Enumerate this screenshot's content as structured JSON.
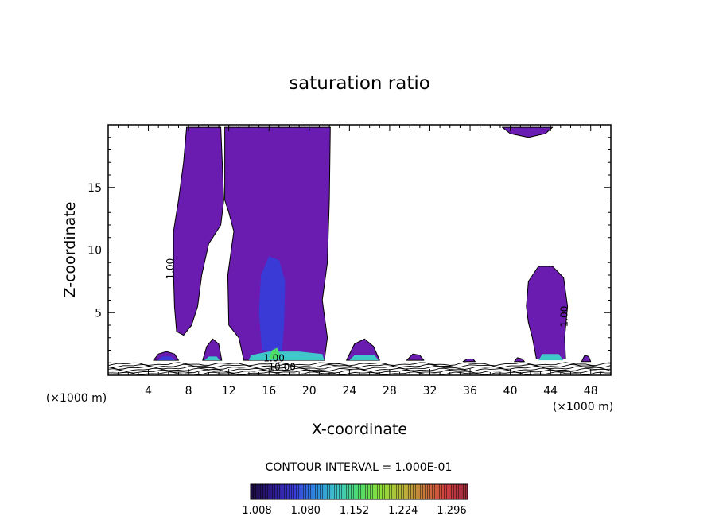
{
  "chart_data": {
    "type": "heatmap",
    "title": "saturation ratio",
    "xlabel": "X-coordinate",
    "ylabel": "Z-coordinate",
    "x_unit_left": "(×1000 m)",
    "x_unit_right": "(×1000 m)",
    "xlim": [
      0,
      50
    ],
    "ylim": [
      0,
      20
    ],
    "x_ticks": [
      4,
      8,
      12,
      16,
      20,
      24,
      28,
      32,
      36,
      40,
      44,
      48
    ],
    "y_ticks": [
      5,
      10,
      15
    ],
    "contour_labels": [
      {
        "text": "1.00",
        "x": 6.5,
        "y": 8.5,
        "rotate": -90
      },
      {
        "text": "1.00",
        "x": 45.7,
        "y": 4.7,
        "rotate": -90
      },
      {
        "text": "1.00",
        "x": 16.5,
        "y": 1.1,
        "rotate": 0
      },
      {
        "text": "10.00",
        "x": 17.3,
        "y": 0.4,
        "rotate": 0
      }
    ],
    "contour_interval_text": "CONTOUR INTERVAL = 1.000E-01",
    "colorbar": {
      "min": 1.0,
      "max": 1.34,
      "tick_labels": [
        "1.008",
        "1.080",
        "1.152",
        "1.224",
        "1.296"
      ],
      "colormap": [
        "#1a0a3a",
        "#2d1a8c",
        "#3a3ad6",
        "#2f8ae0",
        "#3fc7c9",
        "#4fdc6a",
        "#8ee03a",
        "#b9b53a",
        "#c97a3a",
        "#d04040",
        "#9a2a3a"
      ]
    },
    "fill_color": "#6a1bb0",
    "level_colors": {
      "1.08": "#3a3ad6",
      "1.15": "#3fc7c9",
      "1.22": "#4fdc6a"
    },
    "regions": [
      {
        "name": "main-column",
        "level": 1.0,
        "poly": [
          [
            6.5,
            11.5
          ],
          [
            7.0,
            14.0
          ],
          [
            7.5,
            17.0
          ],
          [
            7.8,
            19.8
          ],
          [
            11.2,
            19.8
          ],
          [
            11.5,
            14.0
          ],
          [
            11.2,
            12.0
          ],
          [
            10.0,
            10.5
          ],
          [
            9.3,
            8.0
          ],
          [
            8.9,
            5.5
          ],
          [
            8.3,
            4.0
          ],
          [
            7.5,
            3.2
          ],
          [
            6.8,
            3.5
          ],
          [
            6.6,
            5.5
          ],
          [
            6.5,
            8.0
          ]
        ]
      },
      {
        "name": "right-column",
        "level": 1.0,
        "poly": [
          [
            11.6,
            19.8
          ],
          [
            22.1,
            19.8
          ],
          [
            22.0,
            14.0
          ],
          [
            21.8,
            9.0
          ],
          [
            21.3,
            6.0
          ],
          [
            21.8,
            3.0
          ],
          [
            21.5,
            1.2
          ],
          [
            13.5,
            1.2
          ],
          [
            13.0,
            3.0
          ],
          [
            12.0,
            4.0
          ],
          [
            11.9,
            8.0
          ],
          [
            12.5,
            11.5
          ],
          [
            12.0,
            13.0
          ],
          [
            11.6,
            14.0
          ]
        ]
      },
      {
        "name": "top-right-cap",
        "level": 1.0,
        "poly": [
          [
            39.2,
            19.8
          ],
          [
            44.2,
            19.8
          ],
          [
            43.5,
            19.3
          ],
          [
            41.8,
            19.0
          ],
          [
            40.0,
            19.3
          ]
        ]
      },
      {
        "name": "right-cell",
        "level": 1.0,
        "poly": [
          [
            41.6,
            5.5
          ],
          [
            41.8,
            7.5
          ],
          [
            42.8,
            8.7
          ],
          [
            44.2,
            8.7
          ],
          [
            45.3,
            7.8
          ],
          [
            45.7,
            5.5
          ],
          [
            45.4,
            3.0
          ],
          [
            45.5,
            1.3
          ],
          [
            42.6,
            1.3
          ],
          [
            42.2,
            3.0
          ],
          [
            41.8,
            4.2
          ]
        ]
      },
      {
        "name": "low-cell-5",
        "level": 1.0,
        "poly": [
          [
            4.5,
            1.2
          ],
          [
            5.0,
            1.7
          ],
          [
            5.8,
            1.9
          ],
          [
            6.6,
            1.7
          ],
          [
            7.0,
            1.2
          ]
        ]
      },
      {
        "name": "low-cell-10",
        "level": 1.0,
        "poly": [
          [
            9.4,
            1.2
          ],
          [
            9.8,
            2.3
          ],
          [
            10.4,
            2.9
          ],
          [
            11.0,
            2.5
          ],
          [
            11.3,
            1.2
          ]
        ]
      },
      {
        "name": "low-cell-25",
        "level": 1.0,
        "poly": [
          [
            23.7,
            1.2
          ],
          [
            24.5,
            2.5
          ],
          [
            25.5,
            2.9
          ],
          [
            26.4,
            2.3
          ],
          [
            27.0,
            1.2
          ]
        ]
      },
      {
        "name": "low-cell-30",
        "level": 1.0,
        "poly": [
          [
            29.7,
            1.2
          ],
          [
            30.3,
            1.7
          ],
          [
            31.0,
            1.6
          ],
          [
            31.4,
            1.2
          ]
        ]
      },
      {
        "name": "low-cell-36",
        "level": 1.0,
        "poly": [
          [
            35.3,
            1.1
          ],
          [
            35.7,
            1.3
          ],
          [
            36.3,
            1.3
          ],
          [
            36.5,
            1.1
          ]
        ]
      },
      {
        "name": "low-cell-40",
        "level": 1.0,
        "poly": [
          [
            40.4,
            1.1
          ],
          [
            40.7,
            1.4
          ],
          [
            41.2,
            1.3
          ],
          [
            41.4,
            1.1
          ]
        ]
      },
      {
        "name": "low-cell-48",
        "level": 1.0,
        "poly": [
          [
            47.1,
            1.1
          ],
          [
            47.4,
            1.6
          ],
          [
            47.8,
            1.5
          ],
          [
            48.0,
            1.1
          ]
        ]
      },
      {
        "name": "inner-column-core",
        "level": 1.08,
        "poly": [
          [
            15.0,
            5.0
          ],
          [
            15.2,
            8.0
          ],
          [
            16.0,
            9.5
          ],
          [
            17.0,
            9.2
          ],
          [
            17.6,
            7.5
          ],
          [
            17.5,
            4.0
          ],
          [
            17.3,
            2.0
          ],
          [
            15.3,
            2.0
          ]
        ]
      },
      {
        "name": "base-band-main",
        "level": 1.15,
        "poly": [
          [
            14.0,
            1.2
          ],
          [
            14.2,
            1.6
          ],
          [
            16.0,
            1.9
          ],
          [
            19.0,
            1.9
          ],
          [
            21.3,
            1.7
          ],
          [
            21.5,
            1.2
          ]
        ]
      },
      {
        "name": "base-band-10",
        "level": 1.15,
        "poly": [
          [
            9.6,
            1.2
          ],
          [
            10.0,
            1.5
          ],
          [
            10.8,
            1.5
          ],
          [
            11.1,
            1.2
          ]
        ]
      },
      {
        "name": "base-band-25",
        "level": 1.15,
        "poly": [
          [
            24.0,
            1.2
          ],
          [
            24.5,
            1.6
          ],
          [
            26.5,
            1.6
          ],
          [
            26.9,
            1.2
          ]
        ]
      },
      {
        "name": "base-band-44",
        "level": 1.15,
        "poly": [
          [
            42.8,
            1.2
          ],
          [
            43.2,
            1.7
          ],
          [
            44.8,
            1.7
          ],
          [
            45.3,
            1.2
          ]
        ]
      },
      {
        "name": "base-band-5",
        "level": 1.08,
        "poly": [
          [
            4.9,
            1.2
          ],
          [
            5.4,
            1.5
          ],
          [
            6.2,
            1.5
          ],
          [
            6.7,
            1.2
          ]
        ]
      },
      {
        "name": "base-spot-16",
        "level": 1.22,
        "poly": [
          [
            16.0,
            1.3
          ],
          [
            16.3,
            2.0
          ],
          [
            16.8,
            2.2
          ],
          [
            17.1,
            1.6
          ],
          [
            16.8,
            1.3
          ]
        ]
      }
    ]
  }
}
